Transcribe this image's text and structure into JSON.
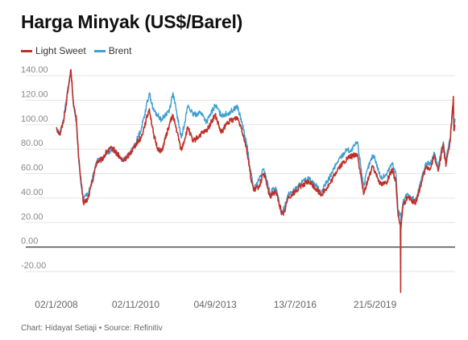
{
  "chart_data": {
    "type": "line",
    "title": "Harga Minyak (US$/Barel)",
    "xlabel": "",
    "ylabel": "",
    "ylim": [
      -20,
      140
    ],
    "y_ticks": [
      "140.00",
      "120.00",
      "100.00",
      "80.00",
      "60.00",
      "40.00",
      "20.00",
      "0.00",
      "-20.00"
    ],
    "y_tick_values": [
      140,
      120,
      100,
      80,
      60,
      40,
      20,
      0,
      -20
    ],
    "x_range": [
      "2008-01-02",
      "2022-03-31"
    ],
    "x_ticks": [
      "02/1/2008",
      "02/11/2010",
      "04/9/2013",
      "13/7/2016",
      "21/5/2019"
    ],
    "x_tick_dates": [
      "2008-01-02",
      "2010-11-02",
      "2013-09-04",
      "2016-07-13",
      "2019-05-21"
    ],
    "legend_position": "top-left",
    "grid": "horizontal",
    "series": [
      {
        "name": "Light Sweet",
        "color": "#c0302a",
        "points": [
          [
            "2008-01-02",
            98
          ],
          [
            "2008-02-15",
            92
          ],
          [
            "2008-04-01",
            102
          ],
          [
            "2008-05-15",
            120
          ],
          [
            "2008-06-15",
            134
          ],
          [
            "2008-07-10",
            145
          ],
          [
            "2008-08-15",
            115
          ],
          [
            "2008-09-20",
            104
          ],
          [
            "2008-10-20",
            72
          ],
          [
            "2008-11-20",
            52
          ],
          [
            "2008-12-20",
            36
          ],
          [
            "2009-02-15",
            39
          ],
          [
            "2009-04-01",
            50
          ],
          [
            "2009-06-15",
            70
          ],
          [
            "2009-08-15",
            71
          ],
          [
            "2009-10-20",
            78
          ],
          [
            "2010-01-05",
            81
          ],
          [
            "2010-05-20",
            70
          ],
          [
            "2010-08-15",
            76
          ],
          [
            "2010-11-02",
            84
          ],
          [
            "2011-01-15",
            90
          ],
          [
            "2011-04-29",
            113
          ],
          [
            "2011-06-20",
            93
          ],
          [
            "2011-08-10",
            81
          ],
          [
            "2011-10-05",
            78
          ],
          [
            "2012-01-15",
            100
          ],
          [
            "2012-03-01",
            108
          ],
          [
            "2012-06-20",
            79
          ],
          [
            "2012-09-15",
            98
          ],
          [
            "2012-11-15",
            86
          ],
          [
            "2013-03-01",
            92
          ],
          [
            "2013-05-15",
            95
          ],
          [
            "2013-09-04",
            108
          ],
          [
            "2013-11-20",
            93
          ],
          [
            "2014-02-15",
            102
          ],
          [
            "2014-06-20",
            106
          ],
          [
            "2014-08-15",
            97
          ],
          [
            "2014-10-15",
            82
          ],
          [
            "2014-12-15",
            56
          ],
          [
            "2015-01-20",
            46
          ],
          [
            "2015-04-01",
            50
          ],
          [
            "2015-06-01",
            60
          ],
          [
            "2015-08-20",
            41
          ],
          [
            "2015-11-01",
            46
          ],
          [
            "2016-01-20",
            28
          ],
          [
            "2016-02-11",
            26
          ],
          [
            "2016-04-15",
            41
          ],
          [
            "2016-07-13",
            45
          ],
          [
            "2016-10-15",
            51
          ],
          [
            "2017-01-15",
            53
          ],
          [
            "2017-06-20",
            43
          ],
          [
            "2017-10-15",
            52
          ],
          [
            "2018-01-20",
            64
          ],
          [
            "2018-05-20",
            72
          ],
          [
            "2018-07-10",
            74
          ],
          [
            "2018-10-03",
            76
          ],
          [
            "2018-12-24",
            43
          ],
          [
            "2019-02-15",
            55
          ],
          [
            "2019-04-23",
            66
          ],
          [
            "2019-05-21",
            62
          ],
          [
            "2019-08-07",
            51
          ],
          [
            "2019-10-15",
            53
          ],
          [
            "2020-01-06",
            63
          ],
          [
            "2020-02-20",
            52
          ],
          [
            "2020-03-18",
            25
          ],
          [
            "2020-04-15",
            20
          ],
          [
            "2020-04-20",
            -37
          ],
          [
            "2020-04-22",
            14
          ],
          [
            "2020-05-20",
            33
          ],
          [
            "2020-07-15",
            41
          ],
          [
            "2020-09-10",
            38
          ],
          [
            "2020-11-02",
            36
          ],
          [
            "2021-01-15",
            52
          ],
          [
            "2021-03-15",
            65
          ],
          [
            "2021-05-15",
            64
          ],
          [
            "2021-07-06",
            75
          ],
          [
            "2021-08-20",
            62
          ],
          [
            "2021-10-26",
            84
          ],
          [
            "2021-12-01",
            66
          ],
          [
            "2022-01-25",
            86
          ],
          [
            "2022-03-08",
            123
          ],
          [
            "2022-03-16",
            95
          ],
          [
            "2022-03-31",
            100
          ]
        ]
      },
      {
        "name": "Brent",
        "color": "#3f9fcf",
        "points": [
          [
            "2008-01-02",
            97
          ],
          [
            "2008-02-15",
            93
          ],
          [
            "2008-04-01",
            103
          ],
          [
            "2008-05-15",
            122
          ],
          [
            "2008-06-15",
            135
          ],
          [
            "2008-07-10",
            144
          ],
          [
            "2008-08-15",
            114
          ],
          [
            "2008-09-20",
            102
          ],
          [
            "2008-10-20",
            70
          ],
          [
            "2008-11-20",
            50
          ],
          [
            "2008-12-20",
            40
          ],
          [
            "2009-02-15",
            43
          ],
          [
            "2009-04-01",
            52
          ],
          [
            "2009-06-15",
            71
          ],
          [
            "2009-08-15",
            72
          ],
          [
            "2009-10-20",
            77
          ],
          [
            "2010-01-05",
            80
          ],
          [
            "2010-05-20",
            71
          ],
          [
            "2010-08-15",
            76
          ],
          [
            "2010-11-02",
            85
          ],
          [
            "2011-01-15",
            97
          ],
          [
            "2011-04-29",
            126
          ],
          [
            "2011-06-20",
            112
          ],
          [
            "2011-08-10",
            108
          ],
          [
            "2011-10-05",
            104
          ],
          [
            "2012-01-15",
            112
          ],
          [
            "2012-03-01",
            126
          ],
          [
            "2012-06-20",
            89
          ],
          [
            "2012-09-15",
            116
          ],
          [
            "2012-11-15",
            108
          ],
          [
            "2013-03-01",
            110
          ],
          [
            "2013-05-15",
            102
          ],
          [
            "2013-09-04",
            116
          ],
          [
            "2013-11-20",
            108
          ],
          [
            "2014-02-15",
            109
          ],
          [
            "2014-06-20",
            115
          ],
          [
            "2014-08-15",
            102
          ],
          [
            "2014-10-15",
            86
          ],
          [
            "2014-12-15",
            60
          ],
          [
            "2015-01-20",
            47
          ],
          [
            "2015-04-01",
            55
          ],
          [
            "2015-06-01",
            64
          ],
          [
            "2015-08-20",
            44
          ],
          [
            "2015-11-01",
            49
          ],
          [
            "2016-01-20",
            27
          ],
          [
            "2016-02-11",
            31
          ],
          [
            "2016-04-15",
            43
          ],
          [
            "2016-07-13",
            47
          ],
          [
            "2016-10-15",
            53
          ],
          [
            "2017-01-15",
            56
          ],
          [
            "2017-06-20",
            45
          ],
          [
            "2017-10-15",
            58
          ],
          [
            "2018-01-20",
            70
          ],
          [
            "2018-05-20",
            80
          ],
          [
            "2018-07-10",
            78
          ],
          [
            "2018-10-03",
            86
          ],
          [
            "2018-12-24",
            50
          ],
          [
            "2019-02-15",
            64
          ],
          [
            "2019-04-23",
            75
          ],
          [
            "2019-05-21",
            72
          ],
          [
            "2019-08-07",
            56
          ],
          [
            "2019-10-15",
            59
          ],
          [
            "2020-01-06",
            69
          ],
          [
            "2020-02-20",
            59
          ],
          [
            "2020-03-18",
            28
          ],
          [
            "2020-04-15",
            28
          ],
          [
            "2020-04-20",
            26
          ],
          [
            "2020-04-22",
            20
          ],
          [
            "2020-05-20",
            36
          ],
          [
            "2020-07-15",
            43
          ],
          [
            "2020-09-10",
            40
          ],
          [
            "2020-11-02",
            38
          ],
          [
            "2021-01-15",
            55
          ],
          [
            "2021-03-15",
            69
          ],
          [
            "2021-05-15",
            68
          ],
          [
            "2021-07-06",
            77
          ],
          [
            "2021-08-20",
            65
          ],
          [
            "2021-10-26",
            86
          ],
          [
            "2021-12-01",
            70
          ],
          [
            "2022-01-25",
            89
          ],
          [
            "2022-03-08",
            118
          ],
          [
            "2022-03-16",
            98
          ],
          [
            "2022-03-31",
            105
          ]
        ]
      }
    ]
  },
  "footer": {
    "credit": "Chart: Hidayat Setiaji • Source: Refinitiv"
  }
}
